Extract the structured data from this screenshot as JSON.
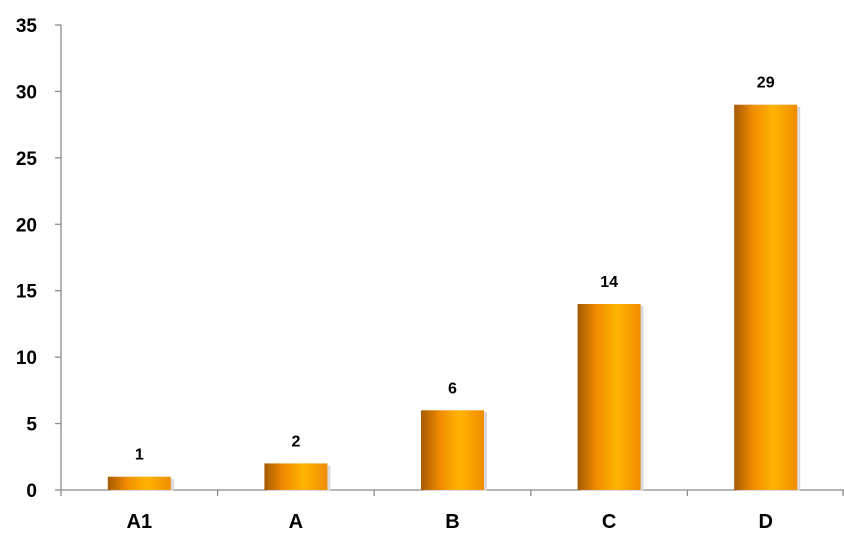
{
  "chart_data": {
    "type": "bar",
    "categories": [
      "A1",
      "A",
      "B",
      "C",
      "D"
    ],
    "values": [
      1,
      2,
      6,
      14,
      29
    ],
    "data_labels": [
      "1",
      "2",
      "6",
      "14",
      "29"
    ],
    "ylim": [
      0,
      35
    ],
    "yticks": [
      0,
      5,
      10,
      15,
      20,
      25,
      30,
      35
    ],
    "ytick_labels": [
      "0",
      "5",
      "10",
      "15",
      "20",
      "25",
      "30",
      "35"
    ],
    "grid": false,
    "legend": "none",
    "bar_colors": {
      "dark": "#a65a00",
      "mid": "#f08c00",
      "light": "#ffb400"
    }
  }
}
